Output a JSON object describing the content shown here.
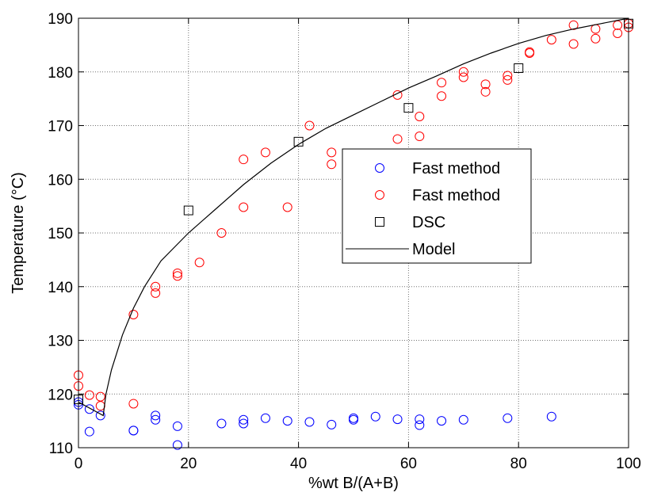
{
  "chart_data": {
    "type": "scatter",
    "title": "",
    "xlabel": "%wt B/(A+B)",
    "ylabel": "Temperature (°C)",
    "xlim": [
      0,
      100
    ],
    "ylim": [
      110,
      190
    ],
    "xticks": [
      0,
      20,
      40,
      60,
      80,
      100
    ],
    "yticks": [
      110,
      120,
      130,
      140,
      150,
      160,
      170,
      180,
      190
    ],
    "grid": true,
    "legend_position": "center-right",
    "series": [
      {
        "name": "Fast method",
        "marker": "circle",
        "color": "#0000ff",
        "points": [
          [
            0,
            118.5
          ],
          [
            0,
            118.0
          ],
          [
            2,
            113.0
          ],
          [
            2,
            117.2
          ],
          [
            4,
            116.0
          ],
          [
            10,
            113.2
          ],
          [
            10,
            113.2
          ],
          [
            14,
            116.0
          ],
          [
            14,
            115.2
          ],
          [
            18,
            114.0
          ],
          [
            18,
            110.5
          ],
          [
            26,
            114.5
          ],
          [
            30,
            115.2
          ],
          [
            30,
            114.5
          ],
          [
            34,
            115.5
          ],
          [
            38,
            115.0
          ],
          [
            42,
            114.8
          ],
          [
            46,
            114.3
          ],
          [
            50,
            115.5
          ],
          [
            50,
            115.2
          ],
          [
            54,
            115.8
          ],
          [
            58,
            115.3
          ],
          [
            62,
            115.3
          ],
          [
            62,
            114.2
          ],
          [
            66,
            115.0
          ],
          [
            70,
            115.2
          ],
          [
            78,
            115.5
          ],
          [
            86,
            115.8
          ]
        ]
      },
      {
        "name": "Fast method",
        "marker": "circle",
        "color": "#ff0000",
        "points": [
          [
            0,
            123.5
          ],
          [
            0,
            121.5
          ],
          [
            2,
            119.8
          ],
          [
            4,
            119.5
          ],
          [
            4,
            117.8
          ],
          [
            10,
            134.8
          ],
          [
            10,
            118.2
          ],
          [
            14,
            140.0
          ],
          [
            14,
            138.8
          ],
          [
            18,
            142.5
          ],
          [
            18,
            142.0
          ],
          [
            22,
            144.5
          ],
          [
            26,
            150.0
          ],
          [
            30,
            163.7
          ],
          [
            30,
            154.8
          ],
          [
            34,
            165.0
          ],
          [
            38,
            154.8
          ],
          [
            42,
            170.0
          ],
          [
            46,
            165.0
          ],
          [
            46,
            162.8
          ],
          [
            58,
            175.7
          ],
          [
            58,
            167.5
          ],
          [
            62,
            171.7
          ],
          [
            62,
            168.0
          ],
          [
            66,
            178.0
          ],
          [
            66,
            175.5
          ],
          [
            70,
            180.0
          ],
          [
            70,
            179.0
          ],
          [
            74,
            177.7
          ],
          [
            74,
            176.3
          ],
          [
            78,
            179.3
          ],
          [
            78,
            178.5
          ],
          [
            82,
            183.7
          ],
          [
            82,
            183.5
          ],
          [
            86,
            186.0
          ],
          [
            90,
            188.7
          ],
          [
            90,
            185.2
          ],
          [
            94,
            188.0
          ],
          [
            94,
            186.2
          ],
          [
            98,
            188.7
          ],
          [
            98,
            187.2
          ],
          [
            100,
            189.0
          ],
          [
            100,
            188.3
          ]
        ]
      },
      {
        "name": "DSC",
        "marker": "square",
        "color": "#000000",
        "points": [
          [
            0,
            119.0
          ],
          [
            20,
            154.2
          ],
          [
            40,
            167.0
          ],
          [
            60,
            173.3
          ],
          [
            80,
            180.7
          ],
          [
            100,
            189.0
          ]
        ]
      },
      {
        "name": "Model",
        "marker": "line",
        "color": "#000000",
        "points": [
          [
            0,
            118.5
          ],
          [
            4.5,
            116.0
          ],
          [
            5,
            120.0
          ],
          [
            6,
            124.5
          ],
          [
            8,
            131.0
          ],
          [
            10,
            136.0
          ],
          [
            12,
            140.0
          ],
          [
            15,
            144.8
          ],
          [
            20,
            150.0
          ],
          [
            25,
            154.5
          ],
          [
            30,
            159.0
          ],
          [
            35,
            163.0
          ],
          [
            40,
            166.5
          ],
          [
            45,
            169.5
          ],
          [
            50,
            172.0
          ],
          [
            55,
            174.5
          ],
          [
            60,
            177.0
          ],
          [
            65,
            179.2
          ],
          [
            70,
            181.5
          ],
          [
            75,
            183.5
          ],
          [
            80,
            185.3
          ],
          [
            85,
            186.8
          ],
          [
            90,
            188.0
          ],
          [
            95,
            189.0
          ],
          [
            100,
            190.0
          ]
        ]
      }
    ]
  }
}
